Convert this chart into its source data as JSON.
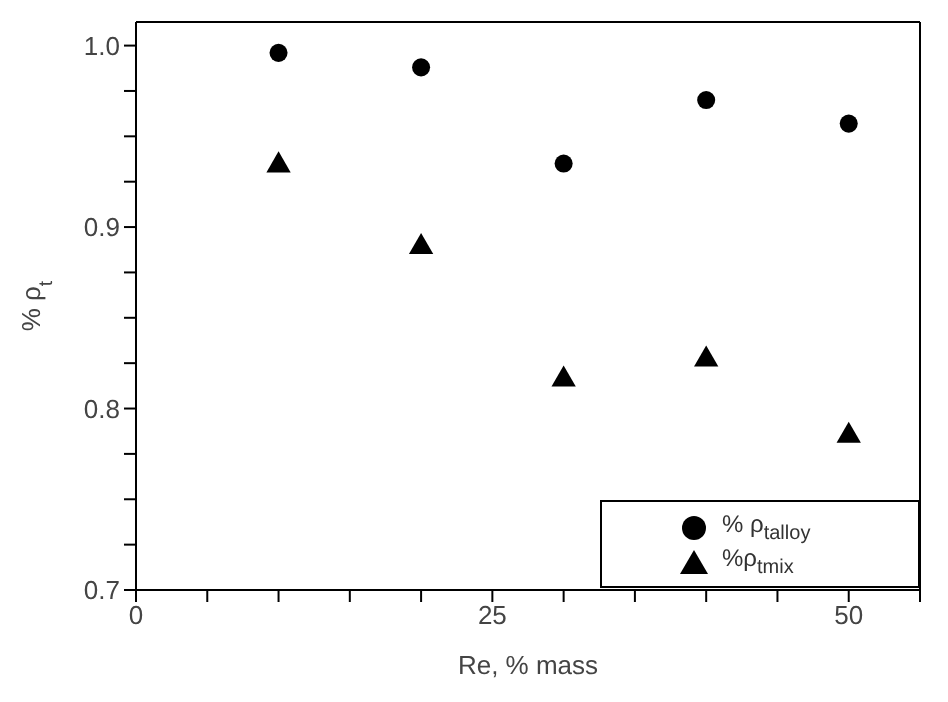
{
  "chart_data": {
    "type": "scatter",
    "xlabel": "Re, % mass",
    "ylabel": "% ρ$_{t}$",
    "x": [
      10,
      20,
      30,
      40,
      50
    ],
    "series": [
      {
        "name": "% ρ$_{talloy}$",
        "color": "#000000",
        "marker": "circle",
        "values": [
          0.996,
          0.988,
          0.935,
          0.97,
          0.957
        ]
      },
      {
        "name": "%ρ$_{tmix}$",
        "color": "#000000",
        "marker": "triangle",
        "values": [
          0.934,
          0.889,
          0.816,
          0.827,
          0.785
        ]
      }
    ],
    "xlim": [
      0,
      55
    ],
    "xticks": [
      0,
      {
        "value": 5,
        "label": null
      },
      {
        "value": 10,
        "label": null
      },
      {
        "value": 15,
        "label": null
      },
      {
        "value": 20,
        "label": null
      },
      25,
      {
        "value": 30,
        "label": null
      },
      {
        "value": 35,
        "label": null
      },
      {
        "value": 40,
        "label": null
      },
      {
        "value": 45,
        "label": null
      },
      50,
      {
        "value": 55,
        "label": null
      }
    ],
    "ylim": [
      0.7,
      1.013
    ],
    "yticks": [
      0.7,
      {
        "value": 0.725,
        "label": null
      },
      {
        "value": 0.75,
        "label": null
      },
      {
        "value": 0.775,
        "label": null
      },
      0.8,
      {
        "value": 0.825,
        "label": null
      },
      {
        "value": 0.85,
        "label": null
      },
      {
        "value": 0.875,
        "label": null
      },
      0.9,
      {
        "value": 0.925,
        "label": null
      },
      {
        "value": 0.95,
        "label": null
      },
      {
        "value": 0.975,
        "label": null
      },
      {
        "value": 1.0,
        "label": "1.0"
      }
    ],
    "legend": "bottom right"
  }
}
